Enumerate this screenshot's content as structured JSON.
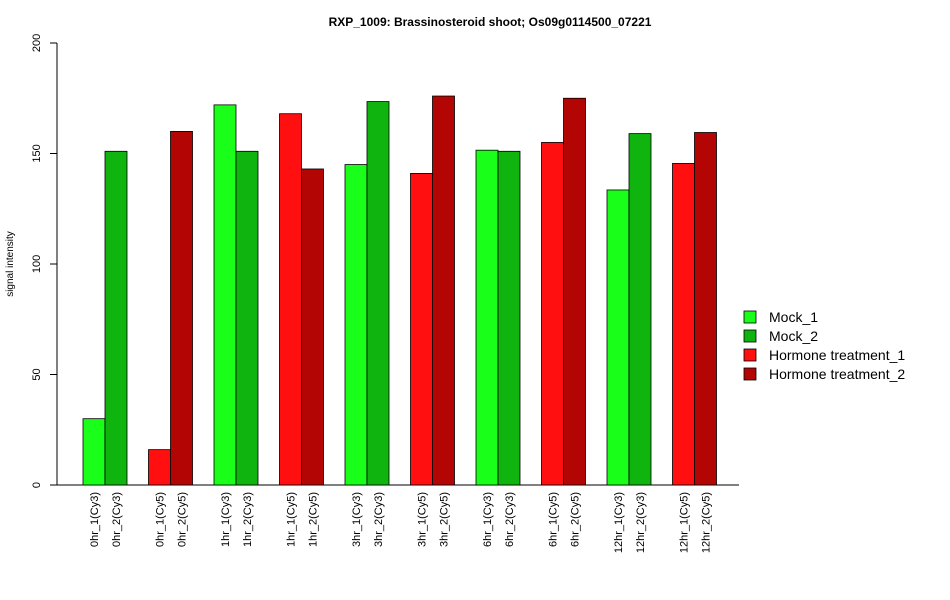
{
  "chart_data": {
    "type": "bar",
    "title": "RXP_1009: Brassinosteroid shoot; Os09g0114500_07221",
    "ylabel": "signal intensity",
    "xlabel": "",
    "ylim": [
      0,
      200
    ],
    "yticks": [
      0,
      50,
      100,
      150,
      200
    ],
    "grid": false,
    "legend_position": "right",
    "bars": [
      {
        "label": "0hr_1(Cy3)",
        "value": 30,
        "series": 0
      },
      {
        "label": "0hr_2(Cy3)",
        "value": 151,
        "series": 1
      },
      {
        "label": "0hr_1(Cy5)",
        "value": 16,
        "series": 2
      },
      {
        "label": "0hr_2(Cy5)",
        "value": 160,
        "series": 3
      },
      {
        "label": "1hr_1(Cy3)",
        "value": 172,
        "series": 0
      },
      {
        "label": "1hr_2(Cy3)",
        "value": 151,
        "series": 1
      },
      {
        "label": "1hr_1(Cy5)",
        "value": 168,
        "series": 2
      },
      {
        "label": "1hr_2(Cy5)",
        "value": 143,
        "series": 3
      },
      {
        "label": "3hr_1(Cy3)",
        "value": 145,
        "series": 0
      },
      {
        "label": "3hr_2(Cy3)",
        "value": 173.5,
        "series": 1
      },
      {
        "label": "3hr_1(Cy5)",
        "value": 141,
        "series": 2
      },
      {
        "label": "3hr_2(Cy5)",
        "value": 176,
        "series": 3
      },
      {
        "label": "6hr_1(Cy3)",
        "value": 151.5,
        "series": 0
      },
      {
        "label": "6hr_2(Cy3)",
        "value": 151,
        "series": 1
      },
      {
        "label": "6hr_1(Cy5)",
        "value": 155,
        "series": 2
      },
      {
        "label": "6hr_2(Cy5)",
        "value": 175,
        "series": 3
      },
      {
        "label": "12hr_1(Cy3)",
        "value": 133.5,
        "series": 0
      },
      {
        "label": "12hr_2(Cy3)",
        "value": 159,
        "series": 1
      },
      {
        "label": "12hr_1(Cy5)",
        "value": 145.5,
        "series": 2
      },
      {
        "label": "12hr_2(Cy5)",
        "value": 159.5,
        "series": 3
      }
    ],
    "series": [
      {
        "name": "Mock_1",
        "color": "#19ff19"
      },
      {
        "name": "Mock_2",
        "color": "#0fb40f"
      },
      {
        "name": "Hormone treatment_1",
        "color": "#ff0f0f"
      },
      {
        "name": "Hormone treatment_2",
        "color": "#b40505"
      }
    ]
  }
}
